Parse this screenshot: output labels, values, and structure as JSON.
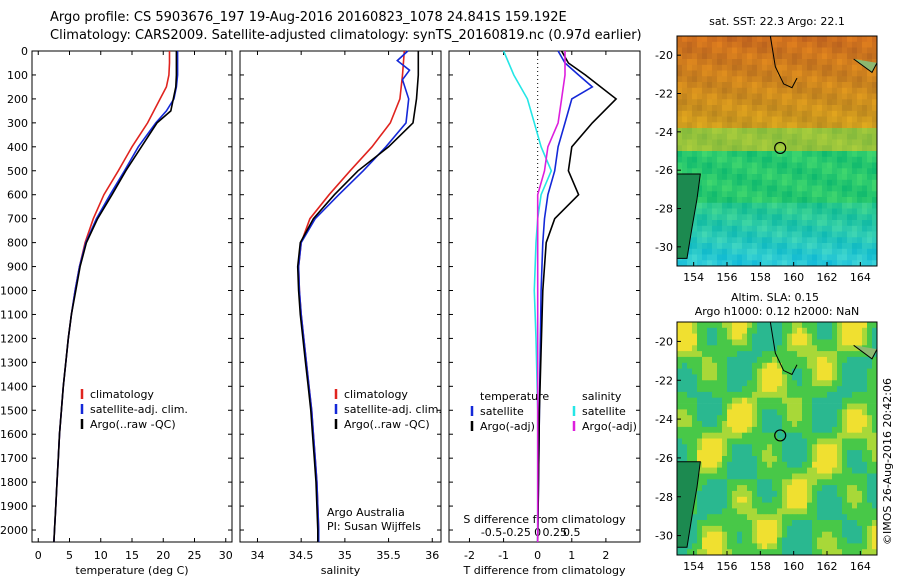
{
  "header": {
    "line1": "Argo profile: CS 5903676_197 19-Aug-2016 20160823_1078 24.841S 159.192E",
    "line2": "Climatology: CARS2009. Satellite-adjusted climatology: synTS_20160819.nc (0.97d earlier)"
  },
  "credit": "©IMOS 26-Aug-2016 20:42:06",
  "depth_ticks": [
    0,
    100,
    200,
    300,
    400,
    500,
    600,
    700,
    800,
    900,
    1000,
    1100,
    1200,
    1300,
    1400,
    1500,
    1600,
    1700,
    1800,
    1900,
    2000
  ],
  "colors": {
    "climatology": "#e0241f",
    "satellite": "#1428d8",
    "argo": "#000000",
    "cyan": "#25e6e6",
    "magenta": "#dd1fdd"
  },
  "chart_data": [
    {
      "type": "line",
      "id": "temperature",
      "xlabel": "temperature (deg C)",
      "ylabel": "",
      "xlim": [
        -1,
        31
      ],
      "ylim": [
        2050,
        0
      ],
      "xticks": [
        0,
        5,
        10,
        15,
        20,
        25,
        30
      ],
      "legend": [
        "climatology",
        "satellite-adj. clim.",
        "Argo(..raw -QC)"
      ],
      "series": [
        {
          "name": "climatology",
          "color": "#e0241f",
          "points": [
            [
              21,
              0
            ],
            [
              21,
              50
            ],
            [
              20.9,
              100
            ],
            [
              20.5,
              150
            ],
            [
              19.5,
              200
            ],
            [
              17.5,
              300
            ],
            [
              15,
              400
            ],
            [
              12.8,
              500
            ],
            [
              10.5,
              600
            ],
            [
              8.8,
              700
            ],
            [
              7.5,
              800
            ],
            [
              6.6,
              900
            ],
            [
              5.9,
              1000
            ],
            [
              5.3,
              1100
            ],
            [
              4.8,
              1200
            ],
            [
              4.4,
              1300
            ],
            [
              4.0,
              1400
            ],
            [
              3.7,
              1500
            ],
            [
              3.4,
              1600
            ],
            [
              3.2,
              1700
            ],
            [
              3.0,
              1800
            ],
            [
              2.8,
              1900
            ],
            [
              2.6,
              2000
            ],
            [
              2.5,
              2050
            ]
          ]
        },
        {
          "name": "satellite-adj. clim.",
          "color": "#1428d8",
          "points": [
            [
              22.3,
              0
            ],
            [
              22.3,
              100
            ],
            [
              22.1,
              150
            ],
            [
              21.7,
              200
            ],
            [
              20.5,
              250
            ],
            [
              18.8,
              300
            ],
            [
              16,
              400
            ],
            [
              13.8,
              500
            ],
            [
              11.5,
              600
            ],
            [
              9.3,
              700
            ],
            [
              7.6,
              800
            ],
            [
              6.6,
              900
            ],
            [
              5.9,
              1000
            ],
            [
              5.3,
              1100
            ],
            [
              4.8,
              1200
            ],
            [
              4.4,
              1300
            ],
            [
              4.0,
              1400
            ],
            [
              3.7,
              1500
            ],
            [
              3.4,
              1600
            ],
            [
              3.2,
              1700
            ],
            [
              3.0,
              1800
            ],
            [
              2.8,
              1900
            ],
            [
              2.6,
              2000
            ],
            [
              2.5,
              2050
            ]
          ]
        },
        {
          "name": "Argo(..raw -QC)",
          "color": "#000000",
          "points": [
            [
              22.1,
              0
            ],
            [
              22.1,
              100
            ],
            [
              22.0,
              150
            ],
            [
              21.6,
              200
            ],
            [
              21.2,
              250
            ],
            [
              19,
              300
            ],
            [
              16.5,
              400
            ],
            [
              14,
              500
            ],
            [
              11.8,
              600
            ],
            [
              9.5,
              700
            ],
            [
              7.7,
              800
            ],
            [
              6.7,
              900
            ],
            [
              6.0,
              1000
            ],
            [
              5.3,
              1100
            ],
            [
              4.8,
              1200
            ],
            [
              4.4,
              1300
            ],
            [
              4.0,
              1400
            ],
            [
              3.7,
              1500
            ],
            [
              3.4,
              1600
            ],
            [
              3.2,
              1700
            ],
            [
              3.0,
              1800
            ],
            [
              2.8,
              1900
            ],
            [
              2.6,
              2000
            ],
            [
              2.5,
              2050
            ]
          ]
        }
      ]
    },
    {
      "type": "line",
      "id": "salinity",
      "xlabel": "salinity",
      "ylabel": "",
      "xlim": [
        33.8,
        36.1
      ],
      "ylim": [
        2050,
        0
      ],
      "xticks": [
        34,
        34.5,
        35,
        35.5,
        36
      ],
      "legend": [
        "climatology",
        "satellite-adj. clim.",
        "Argo(..raw -QC)"
      ],
      "annotation": [
        "Argo Australia",
        "PI: Susan Wijffels"
      ],
      "series": [
        {
          "name": "climatology",
          "color": "#e0241f",
          "points": [
            [
              35.68,
              0
            ],
            [
              35.66,
              100
            ],
            [
              35.63,
              200
            ],
            [
              35.52,
              300
            ],
            [
              35.31,
              400
            ],
            [
              35.06,
              500
            ],
            [
              34.82,
              600
            ],
            [
              34.6,
              700
            ],
            [
              34.5,
              800
            ],
            [
              34.47,
              900
            ],
            [
              34.48,
              1000
            ],
            [
              34.5,
              1100
            ],
            [
              34.53,
              1200
            ],
            [
              34.56,
              1300
            ],
            [
              34.59,
              1400
            ],
            [
              34.62,
              1500
            ],
            [
              34.64,
              1600
            ],
            [
              34.66,
              1700
            ],
            [
              34.68,
              1800
            ],
            [
              34.69,
              1900
            ],
            [
              34.7,
              2000
            ],
            [
              34.7,
              2050
            ]
          ]
        },
        {
          "name": "satellite-adj. clim.",
          "color": "#1428d8",
          "points": [
            [
              35.72,
              0
            ],
            [
              35.6,
              40
            ],
            [
              35.74,
              80
            ],
            [
              35.66,
              120
            ],
            [
              35.73,
              200
            ],
            [
              35.7,
              300
            ],
            [
              35.47,
              400
            ],
            [
              35.21,
              500
            ],
            [
              34.93,
              600
            ],
            [
              34.66,
              700
            ],
            [
              34.5,
              800
            ],
            [
              34.47,
              900
            ],
            [
              34.48,
              1000
            ],
            [
              34.5,
              1100
            ],
            [
              34.53,
              1200
            ],
            [
              34.56,
              1300
            ],
            [
              34.59,
              1400
            ],
            [
              34.62,
              1500
            ],
            [
              34.64,
              1600
            ],
            [
              34.66,
              1700
            ],
            [
              34.68,
              1800
            ],
            [
              34.69,
              1900
            ],
            [
              34.7,
              2000
            ],
            [
              34.7,
              2050
            ]
          ]
        },
        {
          "name": "Argo(..raw -QC)",
          "color": "#000000",
          "points": [
            [
              35.84,
              0
            ],
            [
              35.84,
              100
            ],
            [
              35.82,
              200
            ],
            [
              35.78,
              300
            ],
            [
              35.5,
              400
            ],
            [
              35.15,
              500
            ],
            [
              34.88,
              600
            ],
            [
              34.64,
              700
            ],
            [
              34.49,
              800
            ],
            [
              34.46,
              900
            ],
            [
              34.47,
              1000
            ],
            [
              34.49,
              1100
            ],
            [
              34.52,
              1200
            ],
            [
              34.55,
              1300
            ],
            [
              34.58,
              1400
            ],
            [
              34.61,
              1500
            ],
            [
              34.63,
              1600
            ],
            [
              34.65,
              1700
            ],
            [
              34.67,
              1800
            ],
            [
              34.68,
              1900
            ],
            [
              34.69,
              2000
            ],
            [
              34.69,
              2050
            ]
          ]
        }
      ]
    },
    {
      "type": "line",
      "id": "difference",
      "xlabel": "T difference from climatology",
      "title": "S difference from climatology",
      "ylabel": "",
      "xlim": [
        -2.6,
        3.0
      ],
      "ylim": [
        2050,
        0
      ],
      "xticks": [
        -2,
        -1,
        0,
        1,
        2
      ],
      "top_xticks": [
        "-0.5",
        "-0.25",
        "0",
        "0.25",
        "0.5"
      ],
      "legend_left": [
        "temperature",
        "satellite",
        "Argo(-adj)"
      ],
      "legend_right": [
        "salinity",
        "satellite",
        "Argo(-adj)"
      ],
      "series": [
        {
          "name": "temperature satellite",
          "color": "#1428d8",
          "points": [
            [
              0.6,
              0
            ],
            [
              0.8,
              50
            ],
            [
              1.2,
              100
            ],
            [
              1.6,
              150
            ],
            [
              1.0,
              200
            ],
            [
              0.8,
              300
            ],
            [
              0.6,
              400
            ],
            [
              0.5,
              500
            ],
            [
              0.3,
              600
            ],
            [
              0.2,
              700
            ],
            [
              0.15,
              800
            ],
            [
              0.1,
              1000
            ],
            [
              0.05,
              1500
            ],
            [
              0,
              2050
            ]
          ]
        },
        {
          "name": "temperature Argo(-adj)",
          "color": "#000000",
          "points": [
            [
              0.7,
              0
            ],
            [
              0.9,
              50
            ],
            [
              1.4,
              100
            ],
            [
              2.3,
              200
            ],
            [
              1.6,
              300
            ],
            [
              1.0,
              400
            ],
            [
              0.9,
              500
            ],
            [
              1.2,
              600
            ],
            [
              0.5,
              700
            ],
            [
              0.25,
              800
            ],
            [
              0.15,
              1000
            ],
            [
              0.05,
              1500
            ],
            [
              0,
              2050
            ]
          ]
        },
        {
          "name": "salinity satellite",
          "color": "#25e6e6",
          "points": [
            [
              -1.0,
              0
            ],
            [
              -0.7,
              100
            ],
            [
              -0.3,
              200
            ],
            [
              -0.1,
              300
            ],
            [
              0.1,
              400
            ],
            [
              0.4,
              500
            ],
            [
              0.1,
              600
            ],
            [
              0,
              700
            ],
            [
              -0.05,
              800
            ],
            [
              -0.1,
              1000
            ],
            [
              -0.05,
              1200
            ],
            [
              0,
              1500
            ],
            [
              0,
              2050
            ]
          ]
        },
        {
          "name": "salinity Argo(-adj)",
          "color": "#dd1fdd",
          "points": [
            [
              0.8,
              0
            ],
            [
              0.8,
              100
            ],
            [
              0.7,
              200
            ],
            [
              0.6,
              300
            ],
            [
              0.3,
              400
            ],
            [
              0.2,
              500
            ],
            [
              0,
              600
            ],
            [
              0,
              700
            ],
            [
              0,
              900
            ],
            [
              0,
              2050
            ]
          ]
        }
      ]
    },
    {
      "type": "heatmap",
      "id": "sst_map",
      "title": "sat. SST: 22.3 Argo: 22.1",
      "xticks": [
        154,
        156,
        158,
        160,
        162,
        164
      ],
      "yticks": [
        -20,
        -22,
        -24,
        -26,
        -28,
        -30
      ],
      "xlim": [
        153,
        165
      ],
      "ylim": [
        -31,
        -19
      ],
      "marker": [
        159.192,
        -24.841
      ]
    },
    {
      "type": "heatmap",
      "id": "sla_map",
      "title": "Altim. SLA: 0.15",
      "subtitle": "Argo h1000: 0.12 h2000: NaN",
      "xticks": [
        154,
        156,
        158,
        160,
        162,
        164
      ],
      "yticks": [
        -20,
        -22,
        -24,
        -26,
        -28,
        -30
      ],
      "xlim": [
        153,
        165
      ],
      "ylim": [
        -31,
        -19
      ],
      "marker": [
        159.192,
        -24.841
      ]
    }
  ]
}
